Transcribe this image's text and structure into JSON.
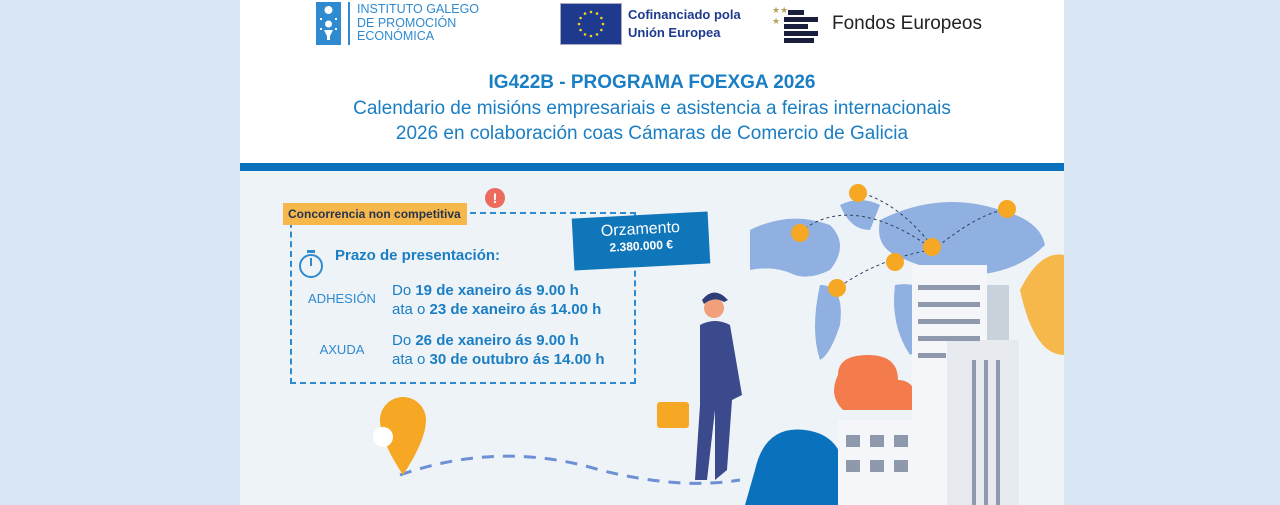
{
  "header": {
    "igape_logo": {
      "lines": [
        "INSTITUTO GALEGO",
        "DE PROMOCIÓN",
        "ECONÓMICA"
      ]
    },
    "eu_logo": {
      "lines": [
        "Cofinanciado pola",
        "Unión Europea"
      ]
    },
    "fondos_logo": {
      "text": "Fondos Europeos"
    }
  },
  "title": {
    "code": "IG422B - PROGRAMA FOEXGA 2026",
    "line1": "Calendario de misións empresariais e asistencia a feiras internacionais",
    "line2": "2026 en colaboración coas Cámaras de Comercio de Galicia"
  },
  "info": {
    "tag": "Concorrencia non competitiva",
    "alert_icon": "!",
    "budget_label": "Orzamento",
    "budget_value": "2.380.000 €",
    "deadline_title": "Prazo de presentación:",
    "periods": [
      {
        "label": "ADHESIÓN",
        "from_prefix": "Do ",
        "from": "19 de xaneiro ás 9.00 h",
        "to_prefix": "ata o ",
        "to": "23 de xaneiro ás 14.00 h"
      },
      {
        "label": "AXUDA",
        "from_prefix": "Do ",
        "from": "26 de xaneiro ás 9.00 h",
        "to_prefix": "ata o ",
        "to": "30 de outubro ás 14.00 h"
      }
    ]
  },
  "colors": {
    "brand_blue": "#0a72bd",
    "tag_yellow": "#f6b84a",
    "alert_red": "#ec6a5e",
    "eu_blue": "#1d3a8f"
  }
}
